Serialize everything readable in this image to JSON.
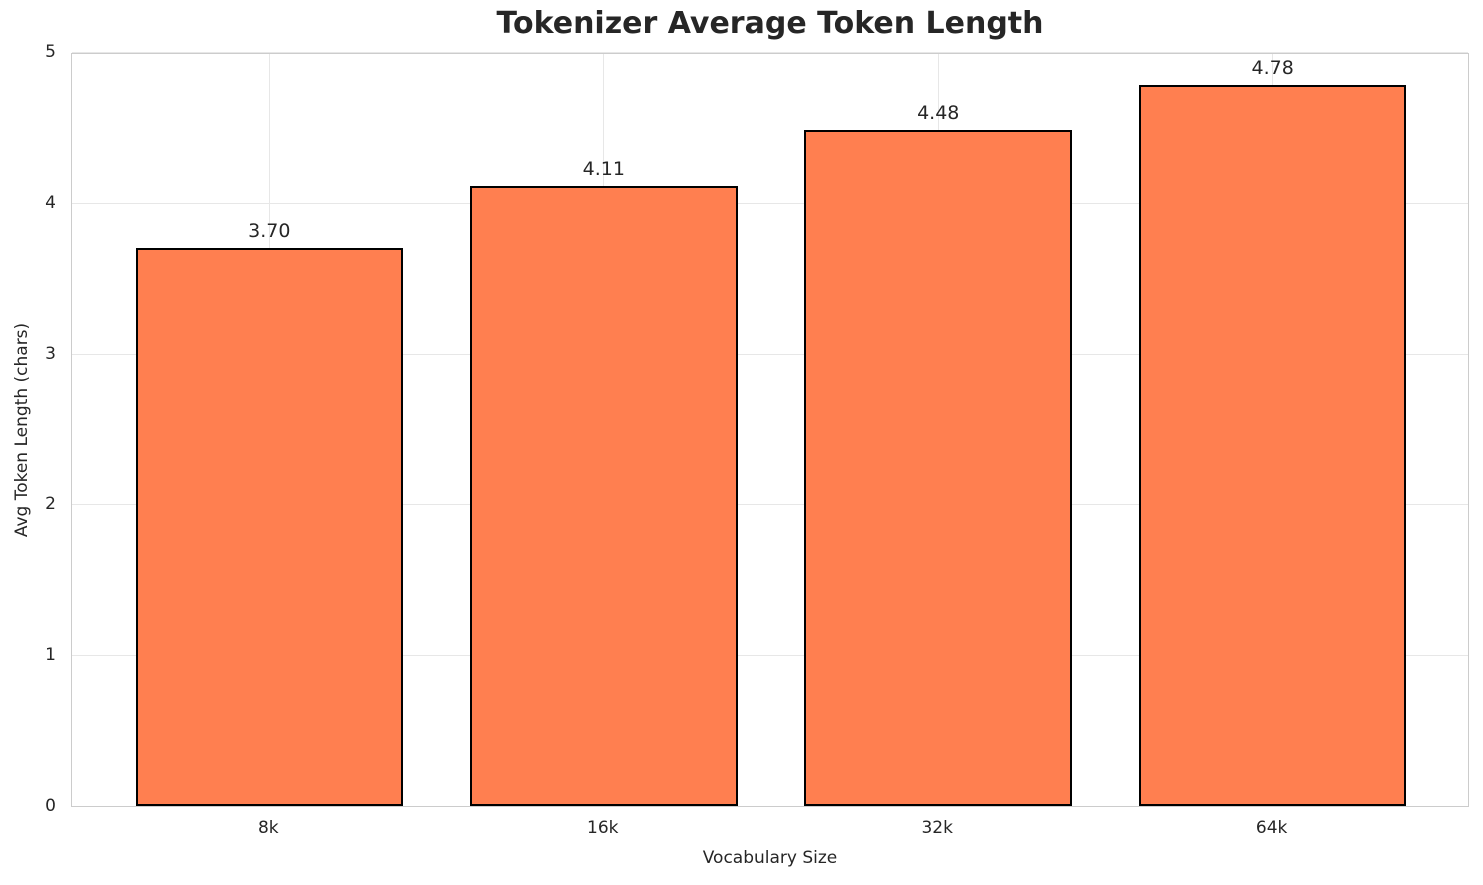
{
  "chart_data": {
    "type": "bar",
    "title": "Tokenizer Average Token Length",
    "xlabel": "Vocabulary Size",
    "ylabel": "Avg Token Length (chars)",
    "categories": [
      "8k",
      "16k",
      "32k",
      "64k"
    ],
    "values": [
      3.7,
      4.11,
      4.48,
      4.78
    ],
    "value_labels": [
      "3.70",
      "4.11",
      "4.48",
      "4.78"
    ],
    "ylim": [
      0,
      5
    ],
    "yticks": [
      0,
      1,
      2,
      3,
      4,
      5
    ],
    "grid": true,
    "legend": "none",
    "bar_color": "#FF7F50",
    "bar_edge_color": "#000000"
  }
}
